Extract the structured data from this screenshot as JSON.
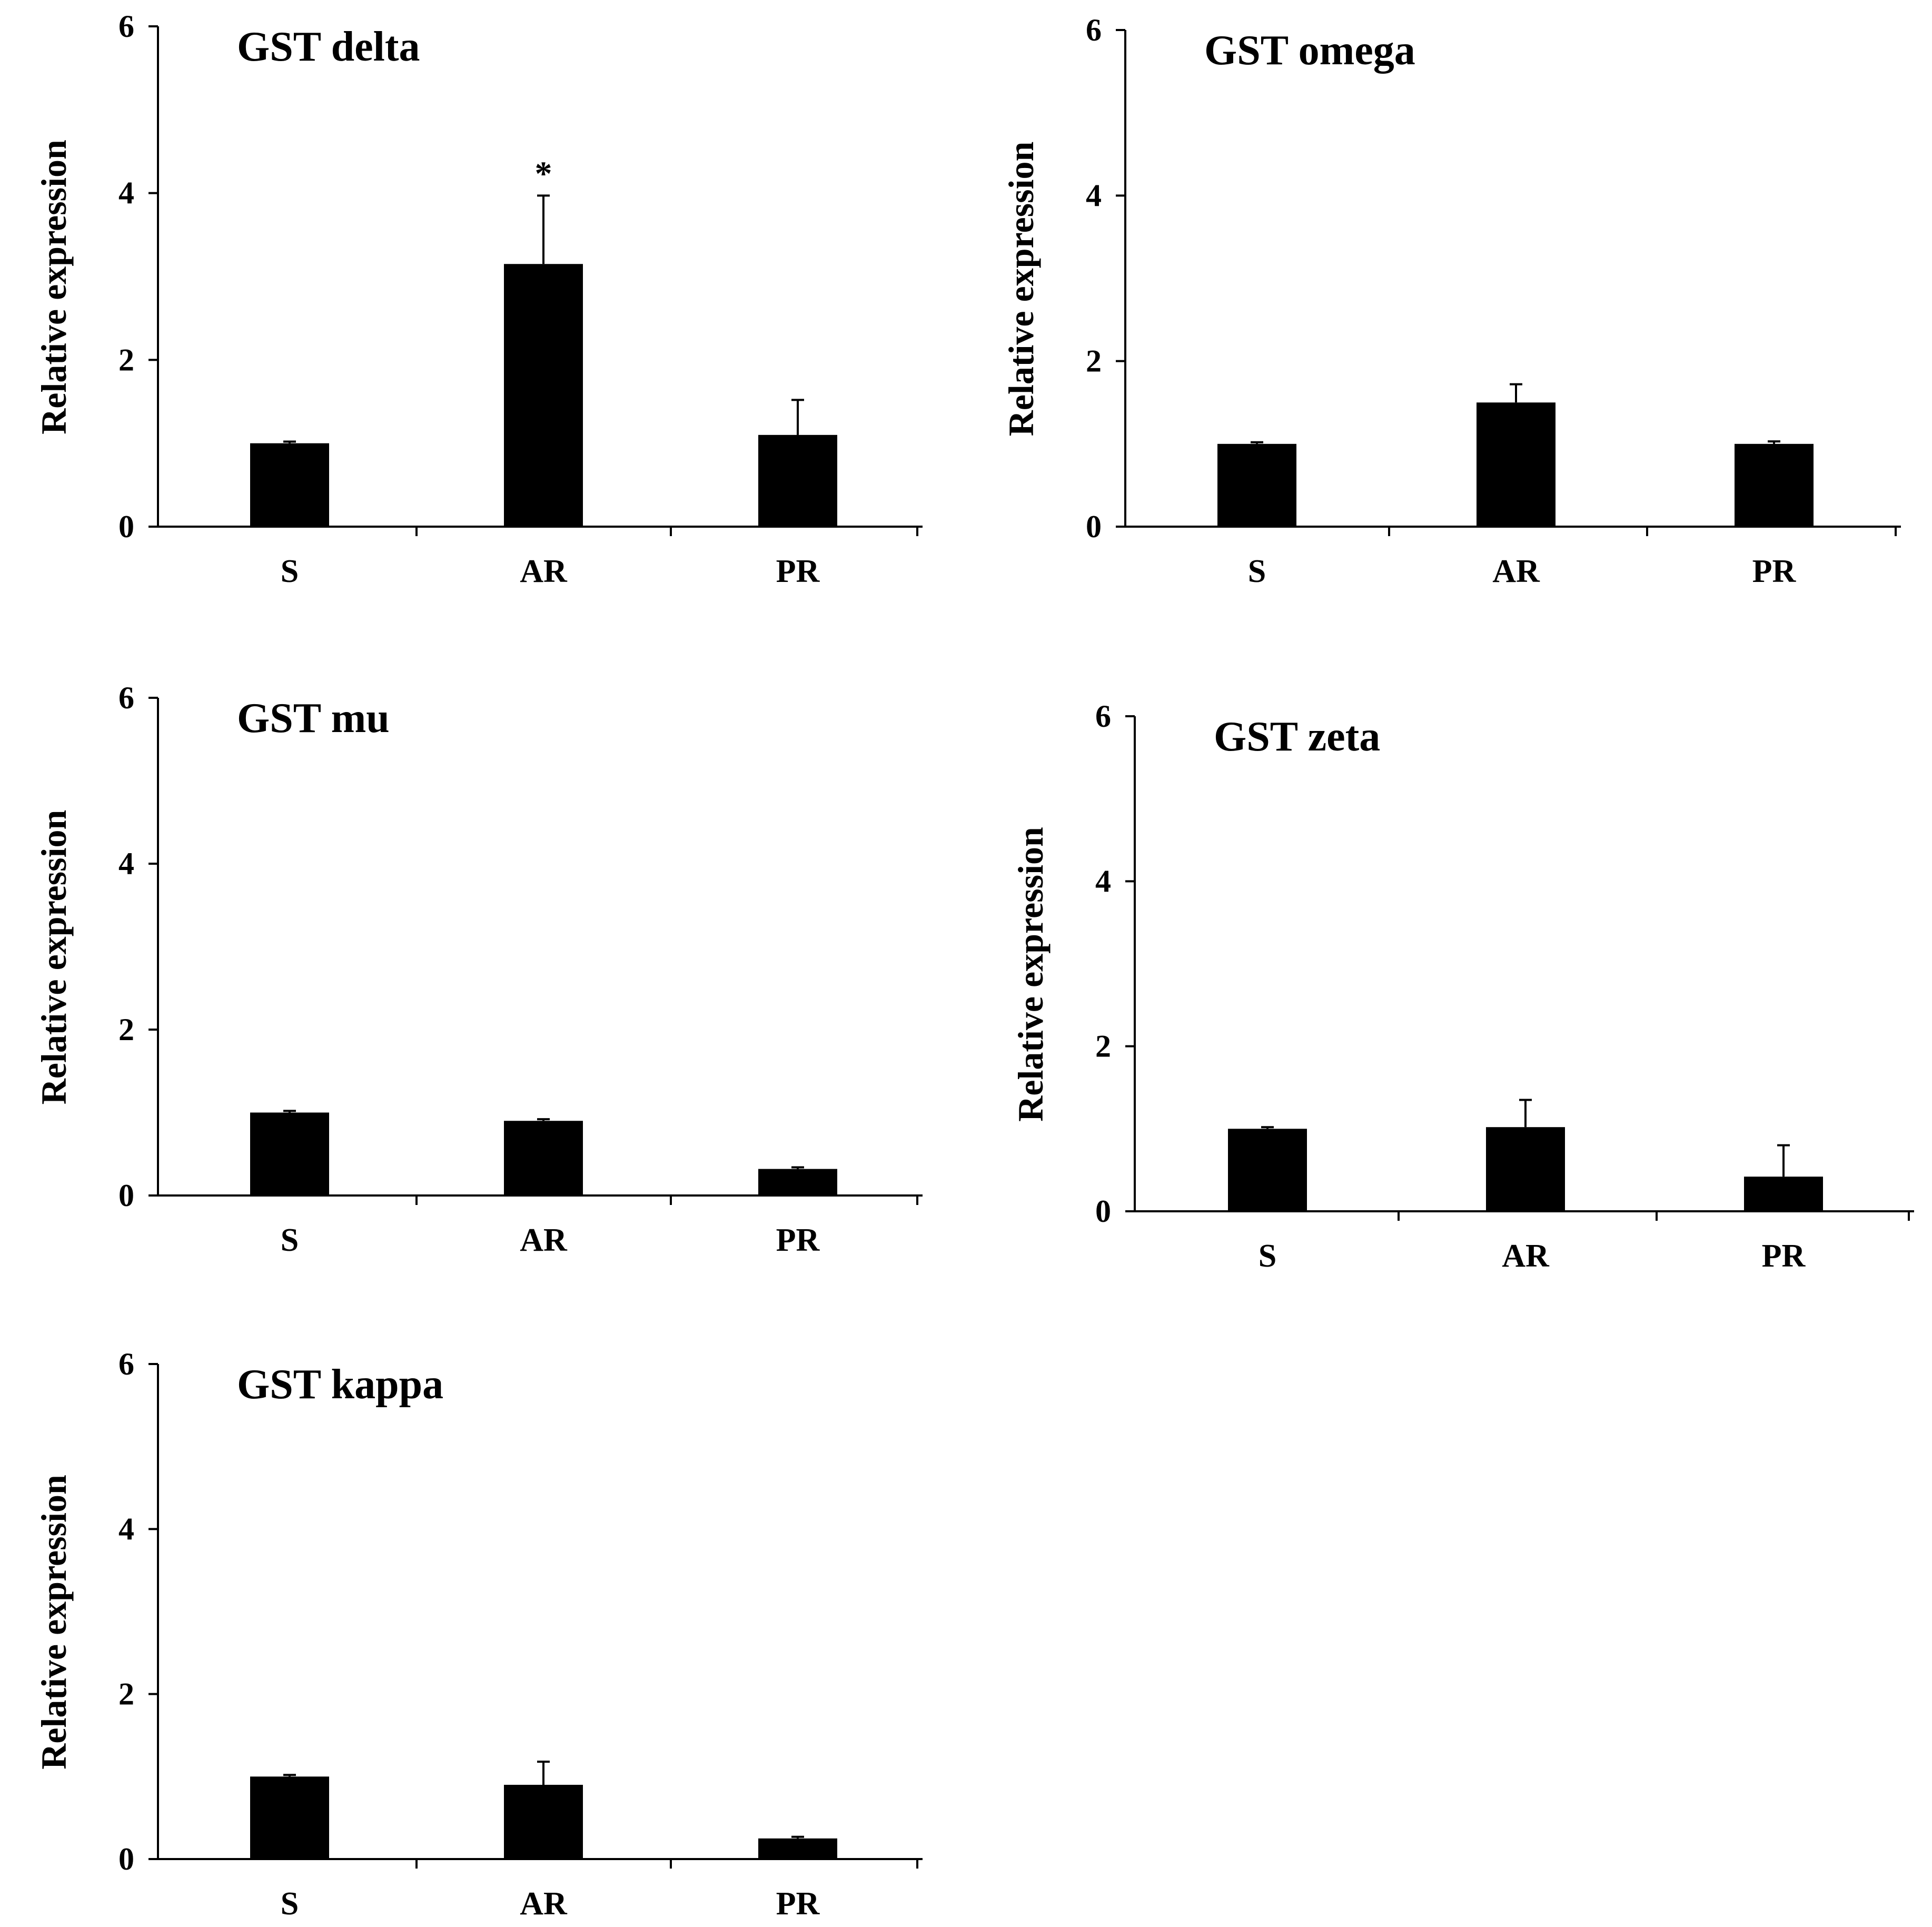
{
  "figure": {
    "background": "#ffffff",
    "bar_color": "#000000"
  },
  "chart_data": [
    {
      "type": "bar",
      "title": "GST delta",
      "xlabel": "",
      "ylabel": "Relative expression",
      "categories": [
        "S",
        "AR",
        "PR"
      ],
      "values": [
        1.0,
        3.15,
        1.1
      ],
      "errors": [
        0.02,
        0.82,
        0.42
      ],
      "annotations": [
        "",
        "*",
        ""
      ],
      "ylim": [
        0,
        6
      ],
      "yticks": [
        0,
        2,
        4,
        6
      ],
      "grid": false
    },
    {
      "type": "bar",
      "title": "GST omega",
      "xlabel": "",
      "ylabel": "Relative expression",
      "categories": [
        "S",
        "AR",
        "PR"
      ],
      "values": [
        1.0,
        1.5,
        1.0
      ],
      "errors": [
        0.02,
        0.22,
        0.03
      ],
      "annotations": [
        "",
        "",
        ""
      ],
      "ylim": [
        0,
        6
      ],
      "yticks": [
        0,
        2,
        4,
        6
      ],
      "grid": false
    },
    {
      "type": "bar",
      "title": "GST mu",
      "xlabel": "",
      "ylabel": "Relative expression",
      "categories": [
        "S",
        "AR",
        "PR"
      ],
      "values": [
        1.0,
        0.9,
        0.32
      ],
      "errors": [
        0.02,
        0.02,
        0.02
      ],
      "annotations": [
        "",
        "",
        ""
      ],
      "ylim": [
        0,
        6
      ],
      "yticks": [
        0,
        2,
        4,
        6
      ],
      "grid": false
    },
    {
      "type": "bar",
      "title": "GST zeta",
      "xlabel": "",
      "ylabel": "Relative expression",
      "categories": [
        "S",
        "AR",
        "PR"
      ],
      "values": [
        1.0,
        1.02,
        0.42
      ],
      "errors": [
        0.02,
        0.33,
        0.38
      ],
      "annotations": [
        "",
        "",
        ""
      ],
      "ylim": [
        0,
        6
      ],
      "yticks": [
        0,
        2,
        4,
        6
      ],
      "grid": false
    },
    {
      "type": "bar",
      "title": "GST kappa",
      "xlabel": "",
      "ylabel": "Relative expression",
      "categories": [
        "S",
        "AR",
        "PR"
      ],
      "values": [
        1.0,
        0.9,
        0.25
      ],
      "errors": [
        0.02,
        0.28,
        0.02
      ],
      "annotations": [
        "",
        "",
        ""
      ],
      "ylim": [
        0,
        6
      ],
      "yticks": [
        0,
        2,
        4,
        6
      ],
      "grid": false
    }
  ]
}
